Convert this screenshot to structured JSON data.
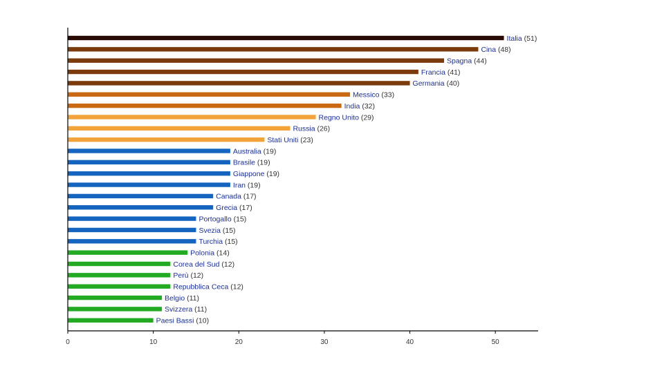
{
  "chart_data": {
    "type": "bar",
    "orientation": "horizontal",
    "categories": [
      "Italia",
      "Cina",
      "Spagna",
      "Francia",
      "Germania",
      "Messico",
      "India",
      "Regno Unito",
      "Russia",
      "Stati Uniti",
      "Australia",
      "Brasile",
      "Giappone",
      "Iran",
      "Canada",
      "Grecia",
      "Portogallo",
      "Svezia",
      "Turchia",
      "Polonia",
      "Corea del Sud",
      "Perù",
      "Repubblica Ceca",
      "Belgio",
      "Svizzera",
      "Paesi Bassi"
    ],
    "values": [
      51,
      48,
      44,
      41,
      40,
      33,
      32,
      29,
      26,
      23,
      19,
      19,
      19,
      19,
      17,
      17,
      15,
      15,
      15,
      14,
      12,
      12,
      12,
      11,
      11,
      10
    ],
    "value_labels": [
      "(51)",
      "(48)",
      "(44)",
      "(41)",
      "(40)",
      "(33)",
      "(32)",
      "(29)",
      "(26)",
      "(23)",
      "(19)",
      "(19)",
      "(19)",
      "(19)",
      "(17)",
      "(17)",
      "(15)",
      "(15)",
      "(15)",
      "(14)",
      "(12)",
      "(12)",
      "(12)",
      "(11)",
      "(11)",
      "(10)"
    ],
    "colors": [
      "#2a0a05",
      "#7a3a0c",
      "#7a3a0c",
      "#7a3a0c",
      "#7a3a0c",
      "#c96a12",
      "#c96a12",
      "#f2a33a",
      "#f2a33a",
      "#f2a33a",
      "#1565c0",
      "#1565c0",
      "#1565c0",
      "#1565c0",
      "#1565c0",
      "#1565c0",
      "#1565c0",
      "#1565c0",
      "#1565c0",
      "#22aa22",
      "#22aa22",
      "#22aa22",
      "#22aa22",
      "#22aa22",
      "#22aa22",
      "#22aa22"
    ],
    "xlim": [
      0,
      55
    ],
    "xticks": [
      0,
      10,
      20,
      30,
      40,
      50
    ],
    "xtick_labels": [
      "0",
      "10",
      "20",
      "30",
      "40",
      "50"
    ],
    "title": "",
    "xlabel": "",
    "ylabel": "",
    "grid": false
  }
}
